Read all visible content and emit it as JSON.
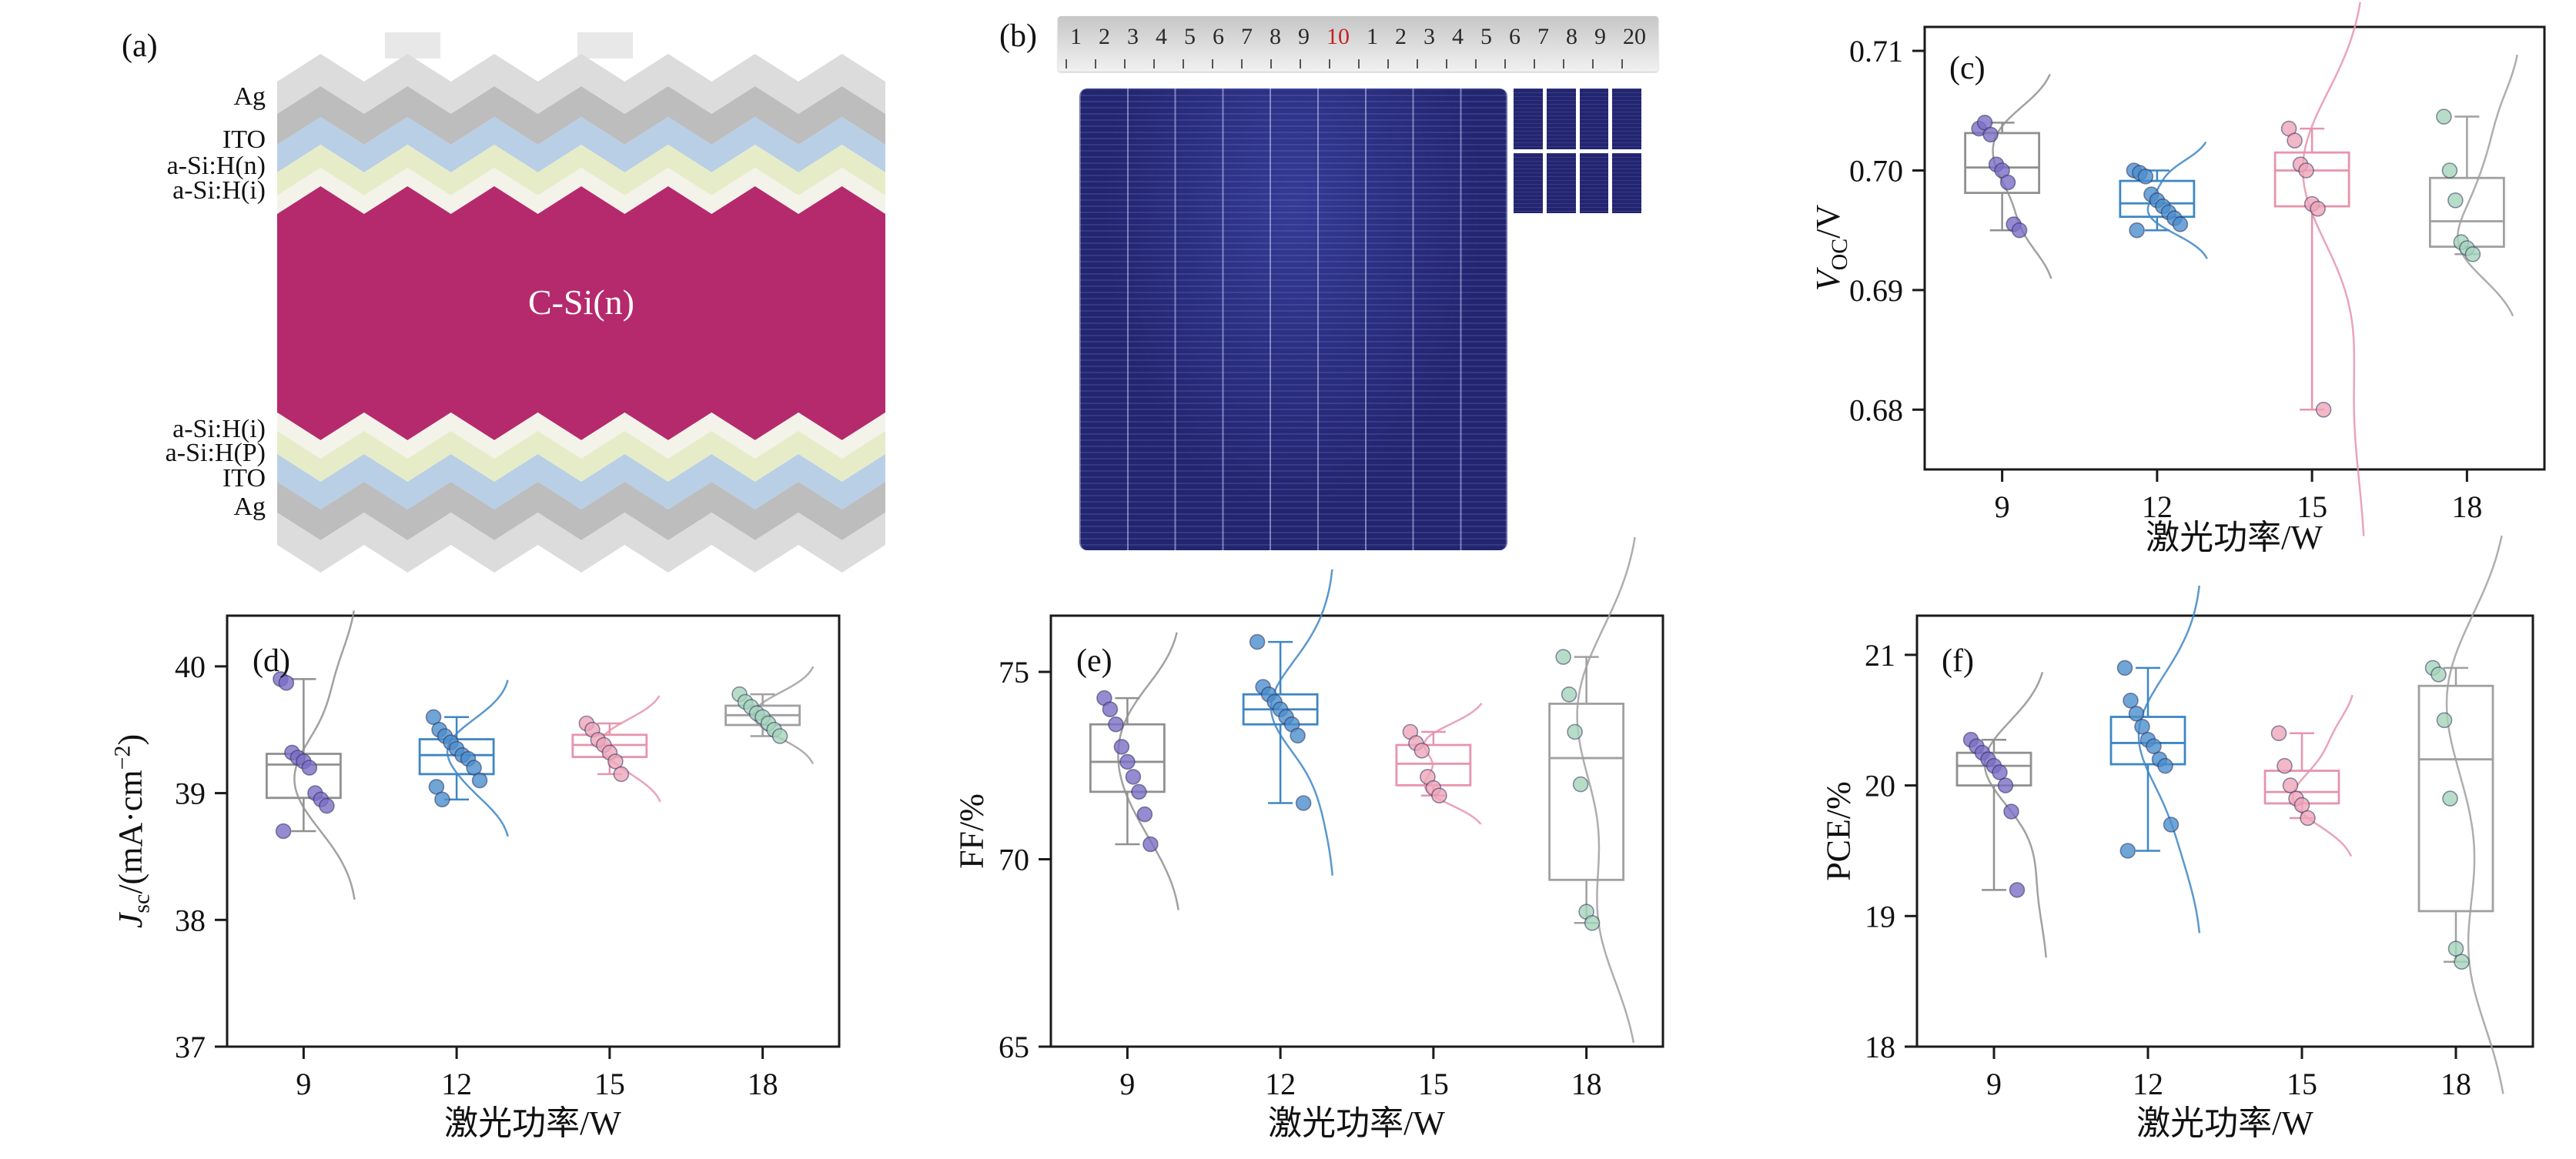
{
  "panels": {
    "a": {
      "tag": "(a)",
      "layer_labels": [
        "Ag",
        "ITO",
        "a-Si:H(n)",
        "a-Si:H(i)",
        "C-Si(n)",
        "a-Si:H(i)",
        "a-Si:H(P)",
        "ITO",
        "Ag"
      ],
      "colors": {
        "silver_light": "#dcdcdc",
        "silver": "#bdbdbd",
        "ito": "#b9cfe6",
        "asi_doped": "#e7ecc8",
        "asi_intrinsic": "#f3f3ea",
        "c_si": "#b52a6d"
      }
    },
    "b": {
      "tag": "(b)",
      "ruler_numbers": [
        "1",
        "2",
        "3",
        "4",
        "5",
        "6",
        "7",
        "8",
        "9",
        "10",
        "1",
        "2",
        "3",
        "4",
        "5",
        "6",
        "7",
        "8",
        "9",
        "20"
      ],
      "ruler_highlight_index": 9,
      "cell_color": "#232570"
    }
  },
  "chart_data": [
    {
      "id": "c",
      "panel": "(c)",
      "type": "box-scatter-violin",
      "xlabel": "激光功率/W",
      "ylabel_parts": [
        {
          "t": "V",
          "italic": true
        },
        {
          "t": "OC",
          "sub": true
        },
        {
          "t": "/V"
        }
      ],
      "ylim": [
        0.675,
        0.712
      ],
      "yticks": [
        "0.68",
        "0.69",
        "0.70",
        "0.71"
      ],
      "categories": [
        "9",
        "12",
        "15",
        "18"
      ],
      "series": [
        {
          "category": "9",
          "point_color": "#7b6ec5",
          "line_color": "#909090",
          "points": [
            0.7035,
            0.704,
            0.703,
            0.7005,
            0.7,
            0.699,
            0.6955,
            0.695
          ]
        },
        {
          "category": "12",
          "point_color": "#4b8fcd",
          "line_color": "#3e86c4",
          "points": [
            0.7,
            0.6998,
            0.6995,
            0.698,
            0.6975,
            0.697,
            0.6965,
            0.696,
            0.6955,
            0.695
          ]
        },
        {
          "category": "15",
          "point_color": "#eda6ba",
          "line_color": "#e694ac",
          "points": [
            0.7035,
            0.7025,
            0.7005,
            0.7,
            0.6972,
            0.6968,
            0.68
          ]
        },
        {
          "category": "18",
          "point_color": "#a5d4bb",
          "line_color": "#a0a0a0",
          "points": [
            0.7045,
            0.7,
            0.6975,
            0.694,
            0.6935,
            0.693
          ]
        }
      ]
    },
    {
      "id": "d",
      "panel": "(d)",
      "type": "box-scatter-violin",
      "xlabel": "激光功率/W",
      "ylabel_parts": [
        {
          "t": "J",
          "italic": true
        },
        {
          "t": "sc",
          "sub": true
        },
        {
          "t": "/(mA·cm"
        },
        {
          "t": "−2",
          "sup": true
        },
        {
          "t": ")"
        }
      ],
      "ylim": [
        37,
        40.4
      ],
      "yticks": [
        "37",
        "38",
        "39",
        "40"
      ],
      "categories": [
        "9",
        "12",
        "15",
        "18"
      ],
      "series": [
        {
          "category": "9",
          "point_color": "#7b6ec5",
          "line_color": "#909090",
          "points": [
            39.9,
            39.87,
            39.32,
            39.28,
            39.25,
            39.2,
            39.0,
            38.95,
            38.9,
            38.7
          ]
        },
        {
          "category": "12",
          "point_color": "#4b8fcd",
          "line_color": "#3e86c4",
          "points": [
            39.6,
            39.5,
            39.45,
            39.4,
            39.35,
            39.3,
            39.27,
            39.2,
            39.1,
            39.05,
            38.95
          ]
        },
        {
          "category": "15",
          "point_color": "#eda6ba",
          "line_color": "#e694ac",
          "points": [
            39.55,
            39.5,
            39.42,
            39.38,
            39.32,
            39.25,
            39.15
          ]
        },
        {
          "category": "18",
          "point_color": "#a5d4bb",
          "line_color": "#a0a0a0",
          "points": [
            39.78,
            39.72,
            39.68,
            39.63,
            39.6,
            39.55,
            39.5,
            39.45
          ]
        }
      ]
    },
    {
      "id": "e",
      "panel": "(e)",
      "type": "box-scatter-violin",
      "xlabel": "激光功率/W",
      "ylabel_parts": [
        {
          "t": "FF/%"
        }
      ],
      "ylim": [
        65,
        76.5
      ],
      "yticks": [
        "65",
        "70",
        "75"
      ],
      "categories": [
        "9",
        "12",
        "15",
        "18"
      ],
      "series": [
        {
          "category": "9",
          "point_color": "#7b6ec5",
          "line_color": "#909090",
          "points": [
            74.3,
            74.0,
            73.6,
            73.0,
            72.6,
            72.2,
            71.8,
            71.2,
            70.4
          ]
        },
        {
          "category": "12",
          "point_color": "#4b8fcd",
          "line_color": "#3e86c4",
          "points": [
            75.8,
            74.6,
            74.4,
            74.2,
            74.0,
            73.8,
            73.6,
            73.3,
            71.5
          ]
        },
        {
          "category": "15",
          "point_color": "#eda6ba",
          "line_color": "#e694ac",
          "points": [
            73.4,
            73.1,
            72.9,
            72.2,
            71.9,
            71.7
          ]
        },
        {
          "category": "18",
          "point_color": "#a5d4bb",
          "line_color": "#a0a0a0",
          "points": [
            75.4,
            74.4,
            73.4,
            72.0,
            68.6,
            68.3
          ]
        }
      ]
    },
    {
      "id": "f",
      "panel": "(f)",
      "type": "box-scatter-violin",
      "xlabel": "激光功率/W",
      "ylabel_parts": [
        {
          "t": "PCE/%"
        }
      ],
      "ylim": [
        18,
        21.3
      ],
      "yticks": [
        "18",
        "19",
        "20",
        "21"
      ],
      "categories": [
        "9",
        "12",
        "15",
        "18"
      ],
      "series": [
        {
          "category": "9",
          "point_color": "#7b6ec5",
          "line_color": "#909090",
          "points": [
            20.35,
            20.3,
            20.25,
            20.2,
            20.15,
            20.1,
            20.0,
            19.8,
            19.2
          ]
        },
        {
          "category": "12",
          "point_color": "#4b8fcd",
          "line_color": "#3e86c4",
          "points": [
            20.9,
            20.65,
            20.55,
            20.45,
            20.35,
            20.3,
            20.2,
            20.15,
            19.7,
            19.5
          ]
        },
        {
          "category": "15",
          "point_color": "#eda6ba",
          "line_color": "#e694ac",
          "points": [
            20.4,
            20.15,
            20.0,
            19.9,
            19.85,
            19.75
          ]
        },
        {
          "category": "18",
          "point_color": "#a5d4bb",
          "line_color": "#a0a0a0",
          "points": [
            20.9,
            20.85,
            20.5,
            19.9,
            18.75,
            18.65
          ]
        }
      ]
    }
  ]
}
